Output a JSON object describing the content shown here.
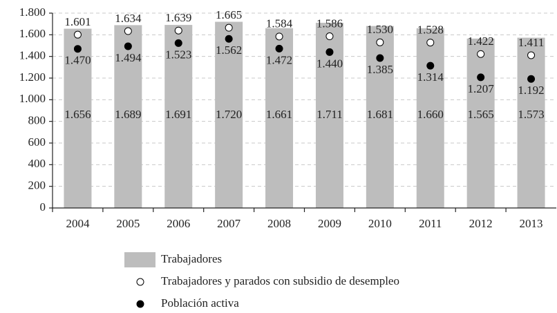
{
  "chart_data": {
    "type": "bar",
    "categories": [
      "2004",
      "2005",
      "2006",
      "2007",
      "2008",
      "2009",
      "2010",
      "2011",
      "2012",
      "2013"
    ],
    "series": [
      {
        "name": "Trabajadores",
        "type": "bar",
        "color": "#bdbdbd",
        "values": [
          1656,
          1689,
          1691,
          1720,
          1661,
          1711,
          1681,
          1660,
          1565,
          1573
        ],
        "value_labels": [
          "1.656",
          "1.689",
          "1.691",
          "1.720",
          "1.661",
          "1.711",
          "1.681",
          "1.660",
          "1.565",
          "1.573"
        ]
      },
      {
        "name": "Trabajadores y parados con subsidio de desempleo",
        "type": "scatter",
        "color": "#ffffff",
        "values": [
          1601,
          1634,
          1639,
          1665,
          1584,
          1586,
          1530,
          1528,
          1422,
          1411
        ],
        "value_labels": [
          "1.601",
          "1.634",
          "1.639",
          "1.665",
          "1.584",
          "1.586",
          "1.530",
          "1.528",
          "1.422",
          "1.411"
        ]
      },
      {
        "name": "Población activa",
        "type": "scatter",
        "color": "#000000",
        "values": [
          1470,
          1494,
          1523,
          1562,
          1472,
          1440,
          1385,
          1314,
          1207,
          1192
        ],
        "value_labels": [
          "1.470",
          "1.494",
          "1.523",
          "1.562",
          "1.472",
          "1.440",
          "1.385",
          "1.314",
          "1.207",
          "1.192"
        ]
      }
    ],
    "ylim": [
      0,
      1800
    ],
    "yticks": [
      0,
      200,
      400,
      600,
      800,
      {
        "value": 1000,
        "label": "1.000"
      },
      {
        "value": 1200,
        "label": "1.200"
      },
      {
        "value": 1400,
        "label": "1.400"
      },
      {
        "value": 1600,
        "label": "1.600"
      },
      {
        "value": 1800,
        "label": "1.800"
      }
    ],
    "grid": true
  }
}
